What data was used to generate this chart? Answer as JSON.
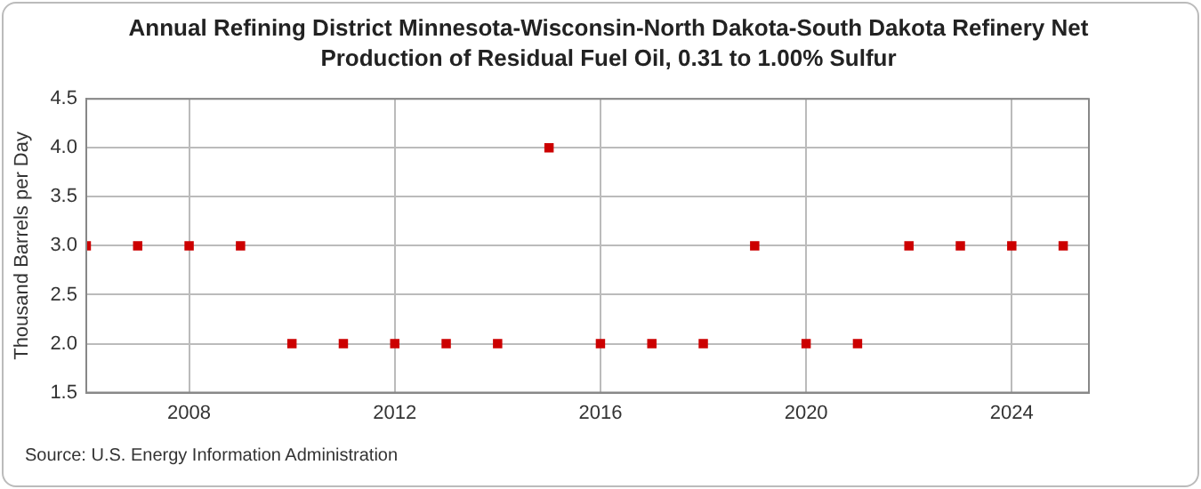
{
  "chart_data": {
    "type": "scatter",
    "title": "Annual Refining District Minnesota-Wisconsin-North Dakota-South Dakota Refinery Net Production of Residual Fuel Oil, 0.31 to 1.00% Sulfur",
    "ylabel": "Thousand Barrels per Day",
    "x": [
      2006,
      2007,
      2008,
      2009,
      2010,
      2011,
      2012,
      2013,
      2014,
      2015,
      2016,
      2017,
      2018,
      2019,
      2020,
      2021,
      2022,
      2023,
      2024,
      2025
    ],
    "series": [
      {
        "color": "#cc0000",
        "values": [
          3,
          3,
          3,
          3,
          2,
          2,
          2,
          2,
          2,
          4,
          2,
          2,
          2,
          3,
          2,
          2,
          3,
          3,
          3,
          3
        ]
      }
    ],
    "xlim": [
      2006,
      2025.5
    ],
    "xticks": [
      2008,
      2012,
      2016,
      2020,
      2024
    ],
    "ylim": [
      1.5,
      4.5
    ],
    "yticks": [
      {
        "value": 1.5,
        "label": "1.5"
      },
      {
        "value": 2,
        "label": "2.0"
      },
      {
        "value": 2.5,
        "label": "2.5"
      },
      {
        "value": 3,
        "label": "3.0"
      },
      {
        "value": 3.5,
        "label": "3.5"
      },
      {
        "value": 4,
        "label": "4.0"
      },
      {
        "value": 4.5,
        "label": "4.5"
      }
    ],
    "grid": true,
    "marker": "square",
    "legend": false,
    "annotations": [
      "Source: U.S. Energy Information Administration"
    ]
  }
}
